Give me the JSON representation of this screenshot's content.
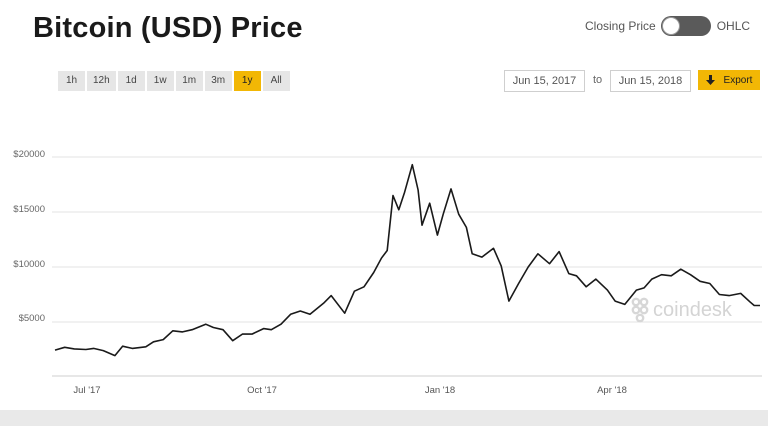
{
  "header": {
    "title": "Bitcoin (USD) Price"
  },
  "toggle": {
    "left_label": "Closing Price",
    "right_label": "OHLC",
    "state": "Closing Price"
  },
  "range_buttons": [
    "1h",
    "12h",
    "1d",
    "1w",
    "1m",
    "3m",
    "1y",
    "All"
  ],
  "active_range": "1y",
  "date_range": {
    "from": "Jun 15, 2017",
    "to_label": "to",
    "to": "Jun 15, 2018"
  },
  "export": {
    "label": "Export"
  },
  "watermark": {
    "text": "coindesk"
  },
  "colors": {
    "accent": "#f2b705",
    "line": "#1a1a1a",
    "toggle": "#5a5a5a"
  },
  "chart_data": {
    "type": "line",
    "title": "",
    "xlabel": "",
    "ylabel": "",
    "x_ticks": [
      "Jul '17",
      "Oct '17",
      "Jan '18",
      "Apr '18"
    ],
    "y_ticks": [
      "$5000",
      "$10000",
      "$15000",
      "$20000"
    ],
    "ylim": [
      0,
      20500
    ],
    "grid": "horizontal",
    "series": [
      {
        "values": [
          [
            "2017-06-15",
            2450
          ],
          [
            "2017-06-20",
            2700
          ],
          [
            "2017-06-25",
            2550
          ],
          [
            "2017-07-01",
            2500
          ],
          [
            "2017-07-05",
            2600
          ],
          [
            "2017-07-10",
            2400
          ],
          [
            "2017-07-16",
            1950
          ],
          [
            "2017-07-20",
            2800
          ],
          [
            "2017-07-25",
            2600
          ],
          [
            "2017-08-01",
            2750
          ],
          [
            "2017-08-05",
            3200
          ],
          [
            "2017-08-10",
            3400
          ],
          [
            "2017-08-15",
            4200
          ],
          [
            "2017-08-20",
            4100
          ],
          [
            "2017-08-25",
            4300
          ],
          [
            "2017-09-01",
            4800
          ],
          [
            "2017-09-05",
            4500
          ],
          [
            "2017-09-10",
            4300
          ],
          [
            "2017-09-15",
            3300
          ],
          [
            "2017-09-20",
            3900
          ],
          [
            "2017-09-25",
            3900
          ],
          [
            "2017-10-01",
            4400
          ],
          [
            "2017-10-05",
            4300
          ],
          [
            "2017-10-10",
            4800
          ],
          [
            "2017-10-15",
            5700
          ],
          [
            "2017-10-20",
            6000
          ],
          [
            "2017-10-25",
            5700
          ],
          [
            "2017-11-01",
            6700
          ],
          [
            "2017-11-05",
            7400
          ],
          [
            "2017-11-12",
            5800
          ],
          [
            "2017-11-17",
            7800
          ],
          [
            "2017-11-22",
            8200
          ],
          [
            "2017-11-27",
            9500
          ],
          [
            "2017-12-01",
            10800
          ],
          [
            "2017-12-04",
            11500
          ],
          [
            "2017-12-07",
            16500
          ],
          [
            "2017-12-10",
            15200
          ],
          [
            "2017-12-13",
            16800
          ],
          [
            "2017-12-17",
            19300
          ],
          [
            "2017-12-20",
            17000
          ],
          [
            "2017-12-22",
            13800
          ],
          [
            "2017-12-26",
            15800
          ],
          [
            "2017-12-30",
            12900
          ],
          [
            "2018-01-02",
            14800
          ],
          [
            "2018-01-06",
            17100
          ],
          [
            "2018-01-10",
            14800
          ],
          [
            "2018-01-14",
            13600
          ],
          [
            "2018-01-17",
            11200
          ],
          [
            "2018-01-22",
            10900
          ],
          [
            "2018-01-28",
            11700
          ],
          [
            "2018-02-01",
            10100
          ],
          [
            "2018-02-05",
            6900
          ],
          [
            "2018-02-10",
            8500
          ],
          [
            "2018-02-15",
            10000
          ],
          [
            "2018-02-20",
            11200
          ],
          [
            "2018-02-26",
            10300
          ],
          [
            "2018-03-03",
            11400
          ],
          [
            "2018-03-08",
            9400
          ],
          [
            "2018-03-12",
            9200
          ],
          [
            "2018-03-17",
            8200
          ],
          [
            "2018-03-22",
            8900
          ],
          [
            "2018-03-28",
            7900
          ],
          [
            "2018-04-01",
            6900
          ],
          [
            "2018-04-06",
            6600
          ],
          [
            "2018-04-12",
            7900
          ],
          [
            "2018-04-16",
            8100
          ],
          [
            "2018-04-20",
            8900
          ],
          [
            "2018-04-25",
            9300
          ],
          [
            "2018-04-30",
            9200
          ],
          [
            "2018-05-05",
            9800
          ],
          [
            "2018-05-10",
            9300
          ],
          [
            "2018-05-15",
            8700
          ],
          [
            "2018-05-20",
            8500
          ],
          [
            "2018-05-25",
            7500
          ],
          [
            "2018-05-30",
            7400
          ],
          [
            "2018-06-05",
            7600
          ],
          [
            "2018-06-10",
            6800
          ],
          [
            "2018-06-12",
            6500
          ],
          [
            "2018-06-15",
            6500
          ]
        ]
      }
    ]
  }
}
